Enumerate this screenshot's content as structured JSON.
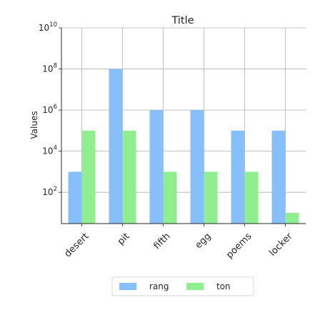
{
  "chart_data": {
    "type": "bar",
    "title": "Title",
    "xlabel": "",
    "ylabel": "Values",
    "yscale": "log",
    "ylim": [
      3,
      10000000000
    ],
    "yticks": [
      {
        "value": 100,
        "base": "10",
        "exp": "2"
      },
      {
        "value": 10000,
        "base": "10",
        "exp": "4"
      },
      {
        "value": 1000000,
        "base": "10",
        "exp": "6"
      },
      {
        "value": 100000000,
        "base": "10",
        "exp": "8"
      },
      {
        "value": 10000000000,
        "base": "10",
        "exp": "10"
      }
    ],
    "grid": true,
    "legend_position": "bottom-center",
    "categories": [
      "desert",
      "pit",
      "fifth",
      "egg",
      "poems",
      "locker"
    ],
    "series": [
      {
        "name": "rang",
        "color": "#87bffa",
        "values": [
          1000,
          100000000,
          1000000,
          1000000,
          100000,
          100000
        ]
      },
      {
        "name": "ton",
        "color": "#90ee90",
        "values": [
          100000,
          100000,
          1000,
          1000,
          1000,
          10
        ]
      }
    ]
  }
}
